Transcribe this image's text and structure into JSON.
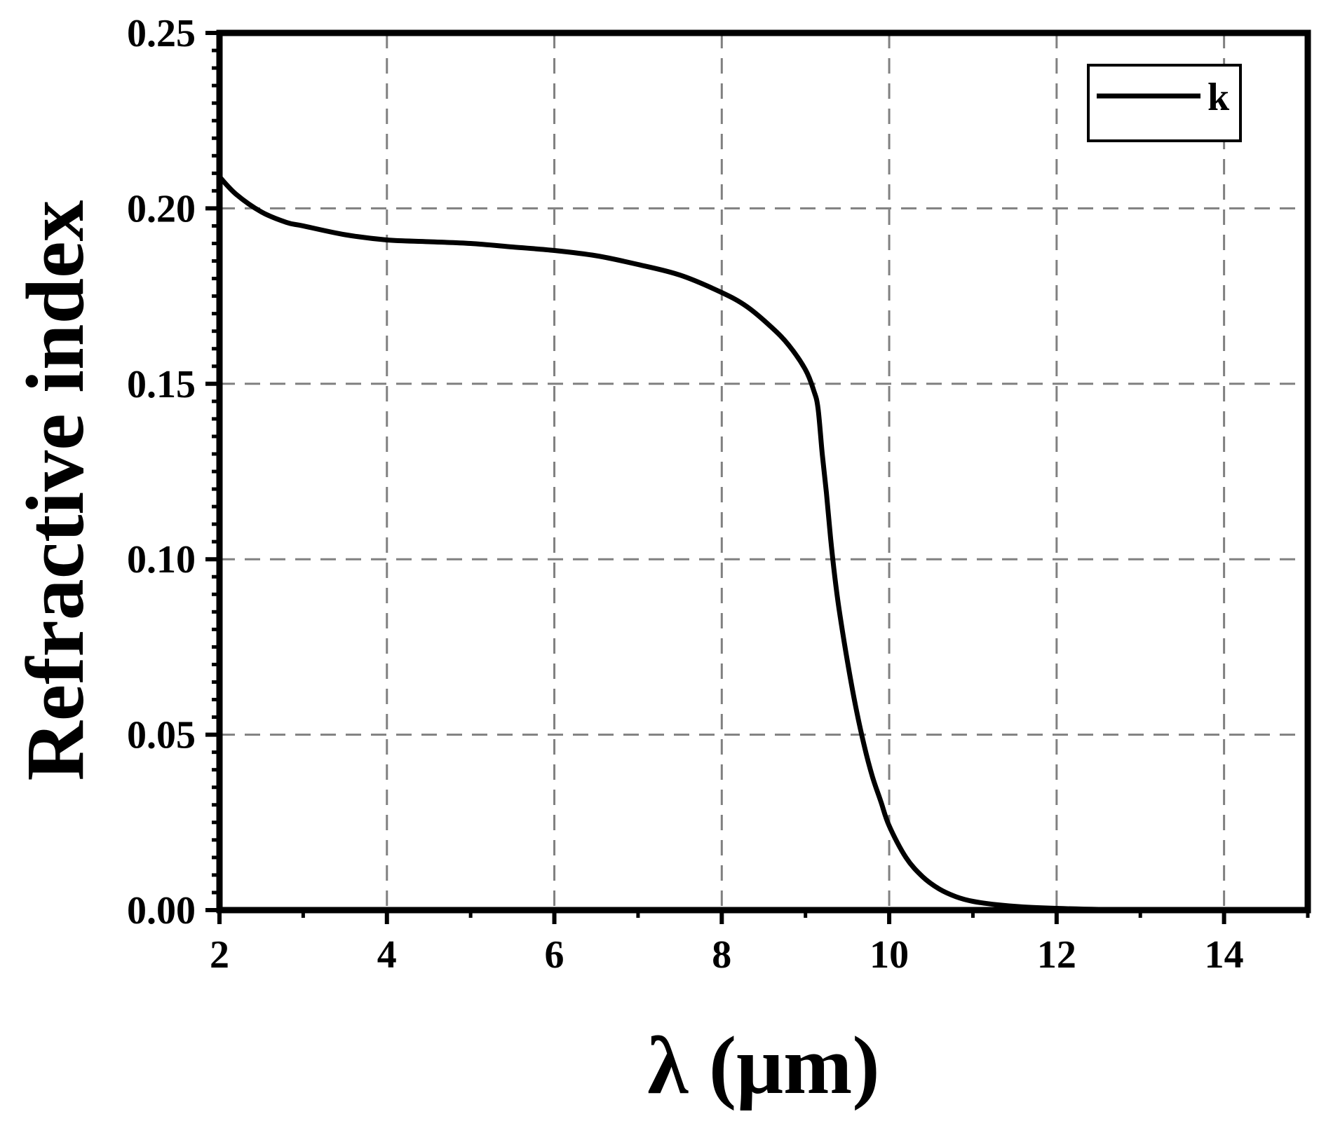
{
  "chart_data": {
    "type": "line",
    "title": "",
    "xlabel": "λ (μm)",
    "ylabel": "Refractive index",
    "xlim": [
      2,
      15
    ],
    "ylim": [
      0,
      0.25
    ],
    "x_ticks": [
      2,
      4,
      6,
      8,
      10,
      12,
      14
    ],
    "x_tick_labels": [
      "2",
      "4",
      "6",
      "8",
      "10",
      "12",
      "14"
    ],
    "y_ticks": [
      0,
      0.05,
      0.1,
      0.15,
      0.2,
      0.25
    ],
    "y_tick_labels": [
      "0.00",
      "0.05",
      "0.10",
      "0.15",
      "0.20",
      "0.25"
    ],
    "grid": true,
    "grid_style": "dashed",
    "legend_position": "top-right",
    "colors": {
      "line": "#000000",
      "grid": "#808080",
      "axes": "#000000"
    },
    "series": [
      {
        "name": "k",
        "x": [
          2.0,
          2.2,
          2.5,
          2.8,
          3.0,
          3.5,
          4.0,
          4.5,
          5.0,
          5.5,
          6.0,
          6.5,
          7.0,
          7.5,
          8.0,
          8.3,
          8.6,
          8.8,
          9.0,
          9.1,
          9.15,
          9.2,
          9.25,
          9.3,
          9.35,
          9.4,
          9.5,
          9.6,
          9.7,
          9.8,
          9.9,
          10.0,
          10.2,
          10.4,
          10.6,
          10.8,
          11.0,
          11.3,
          11.6,
          12.0,
          12.5,
          13.0,
          13.5
        ],
        "y": [
          0.209,
          0.204,
          0.199,
          0.196,
          0.195,
          0.1925,
          0.191,
          0.1905,
          0.19,
          0.189,
          0.188,
          0.1865,
          0.184,
          0.181,
          0.176,
          0.172,
          0.166,
          0.161,
          0.154,
          0.148,
          0.143,
          0.13,
          0.119,
          0.106,
          0.095,
          0.086,
          0.071,
          0.058,
          0.047,
          0.038,
          0.031,
          0.024,
          0.015,
          0.0095,
          0.006,
          0.0038,
          0.0025,
          0.0015,
          0.0009,
          0.0005,
          0.0002,
          0.0001,
          5e-05
        ]
      }
    ]
  }
}
